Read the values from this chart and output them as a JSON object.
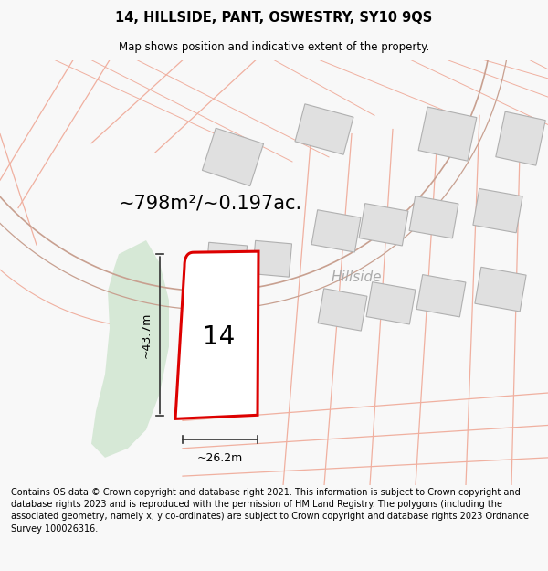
{
  "title": "14, HILLSIDE, PANT, OSWESTRY, SY10 9QS",
  "subtitle": "Map shows position and indicative extent of the property.",
  "area_text": "~798m²/~0.197ac.",
  "width_label": "~26.2m",
  "height_label": "~43.7m",
  "number_label": "14",
  "street_label": "Hillside",
  "footer": "Contains OS data © Crown copyright and database right 2021. This information is subject to Crown copyright and database rights 2023 and is reproduced with the permission of HM Land Registry. The polygons (including the associated geometry, namely x, y co-ordinates) are subject to Crown copyright and database rights 2023 Ordnance Survey 100026316.",
  "bg_color": "#f8f8f8",
  "map_bg": "#ffffff",
  "green_patch_color": "#d6e8d6",
  "road_color": "#f0b0a0",
  "road_outline_color": "#c8a090",
  "building_fill": "#e0e0e0",
  "building_edge": "#b0b0b0",
  "plot_outline_color": "#dd0000",
  "plot_fill_color": "#ffffff",
  "dim_line_color": "#333333",
  "street_color": "#aaaaaa",
  "title_fontsize": 10.5,
  "subtitle_fontsize": 8.5,
  "area_fontsize": 15,
  "number_fontsize": 20,
  "street_fontsize": 11,
  "footer_fontsize": 7.0
}
